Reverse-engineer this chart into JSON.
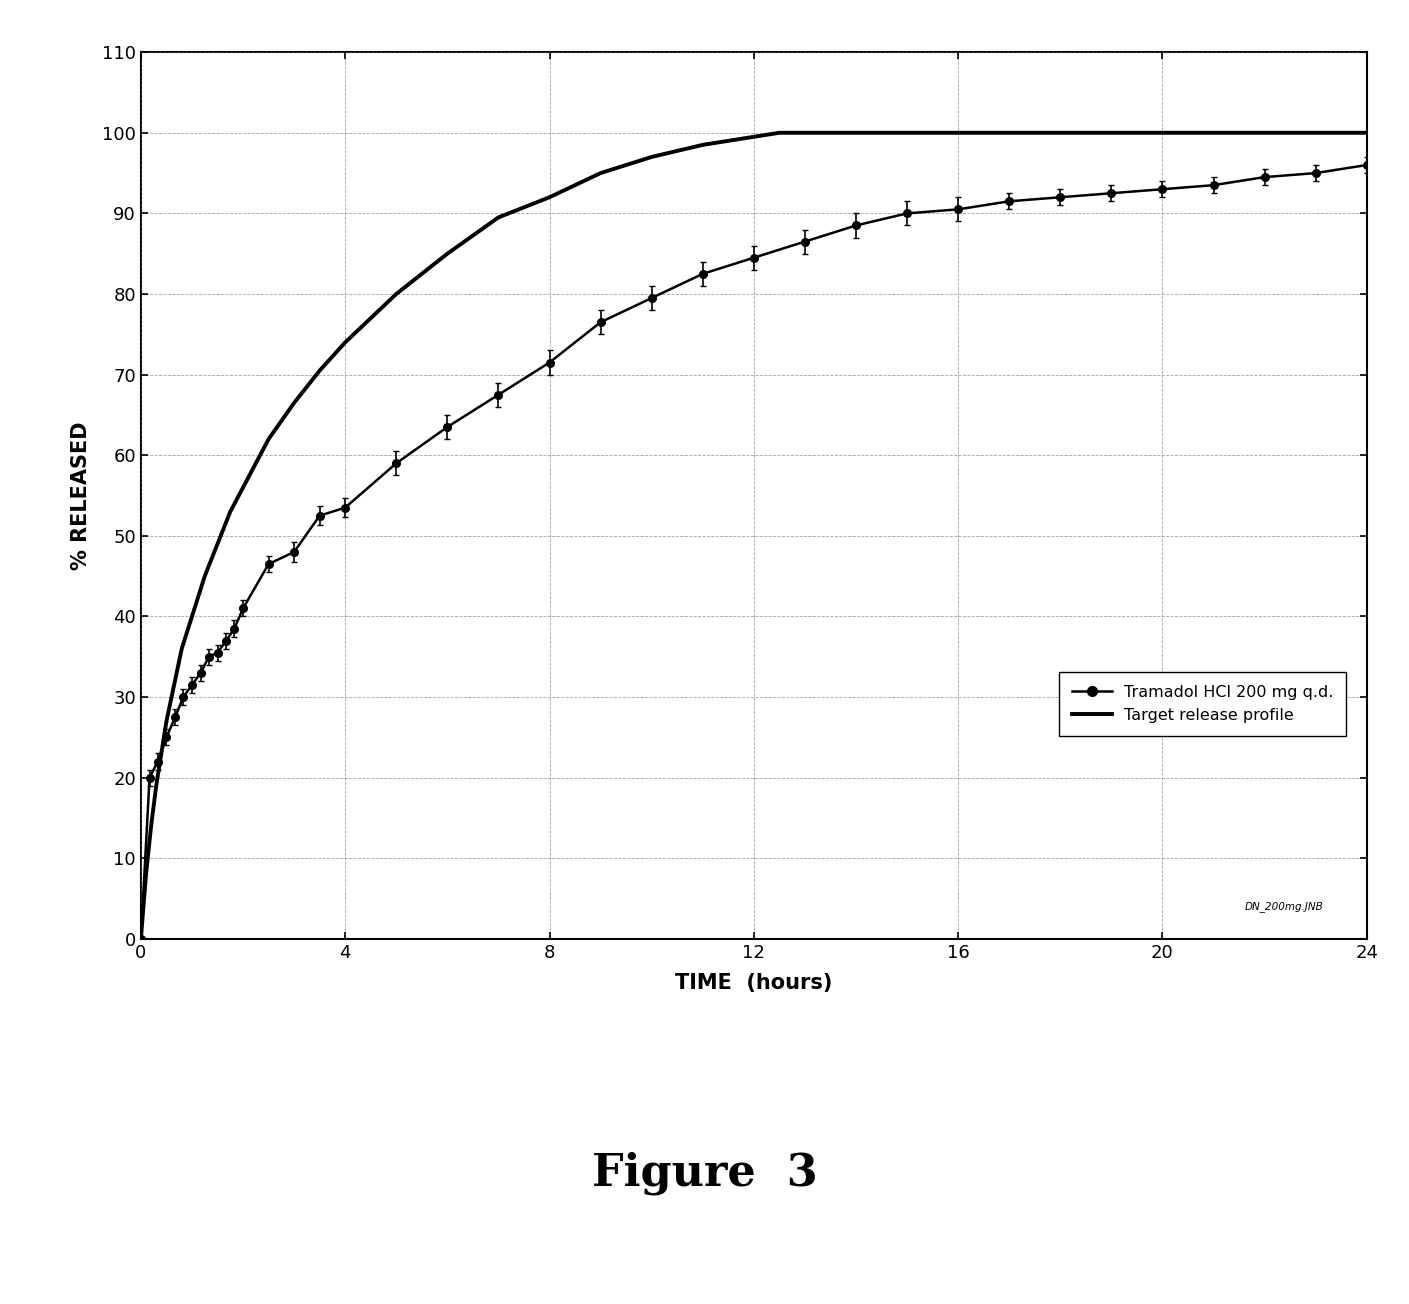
{
  "tramadol_x": [
    0,
    0.17,
    0.33,
    0.5,
    0.67,
    0.83,
    1.0,
    1.17,
    1.33,
    1.5,
    1.67,
    1.83,
    2.0,
    2.5,
    3.0,
    3.5,
    4.0,
    5.0,
    6.0,
    7.0,
    8.0,
    9.0,
    10.0,
    11.0,
    12.0,
    13.0,
    14.0,
    15.0,
    16.0,
    17.0,
    18.0,
    19.0,
    20.0,
    21.0,
    22.0,
    23.0,
    24.0
  ],
  "tramadol_y": [
    0,
    20.0,
    22.0,
    25.0,
    27.5,
    30.0,
    31.5,
    33.0,
    35.0,
    35.5,
    37.0,
    38.5,
    41.0,
    46.5,
    48.0,
    52.5,
    53.5,
    59.0,
    63.5,
    67.5,
    71.5,
    76.5,
    79.5,
    82.5,
    84.5,
    86.5,
    88.5,
    90.0,
    90.5,
    91.5,
    92.0,
    92.5,
    93.0,
    93.5,
    94.5,
    95.0,
    96.0
  ],
  "tramadol_yerr": [
    0,
    1.0,
    1.0,
    1.0,
    1.0,
    1.0,
    1.0,
    1.0,
    1.0,
    1.0,
    1.0,
    1.0,
    1.0,
    1.0,
    1.2,
    1.2,
    1.2,
    1.5,
    1.5,
    1.5,
    1.5,
    1.5,
    1.5,
    1.5,
    1.5,
    1.5,
    1.5,
    1.5,
    1.5,
    1.0,
    1.0,
    1.0,
    1.0,
    1.0,
    1.0,
    1.0,
    1.0
  ],
  "target_x": [
    0,
    0.1,
    0.2,
    0.3,
    0.4,
    0.5,
    0.6,
    0.7,
    0.8,
    0.9,
    1.0,
    1.25,
    1.5,
    1.75,
    2.0,
    2.5,
    3.0,
    3.5,
    4.0,
    5.0,
    6.0,
    7.0,
    8.0,
    9.0,
    10.0,
    11.0,
    12.0,
    12.5,
    13.0,
    13.5,
    14.0,
    14.5,
    15.0,
    15.25,
    15.5,
    16.0,
    17.0,
    18.0,
    19.0,
    20.0,
    21.0,
    22.0,
    23.0,
    24.0
  ],
  "target_y": [
    0,
    8.0,
    14.0,
    19.0,
    23.0,
    27.0,
    30.0,
    33.0,
    36.0,
    38.0,
    40.0,
    45.0,
    49.0,
    53.0,
    56.0,
    62.0,
    66.5,
    70.5,
    74.0,
    80.0,
    85.0,
    89.5,
    92.0,
    95.0,
    97.0,
    98.5,
    99.5,
    100.0,
    100.0,
    100.0,
    100.0,
    100.0,
    100.0,
    100.0,
    100.0,
    100.0,
    100.0,
    100.0,
    100.0,
    100.0,
    100.0,
    100.0,
    100.0,
    100.0
  ],
  "xlabel": "TIME  (hours)",
  "ylabel": "% RELEASED",
  "xlim": [
    0,
    24
  ],
  "ylim": [
    0,
    110
  ],
  "xticks": [
    0,
    4,
    8,
    12,
    16,
    20,
    24
  ],
  "yticks": [
    0,
    10,
    20,
    30,
    40,
    50,
    60,
    70,
    80,
    90,
    100,
    110
  ],
  "legend_tramadol": "Tramadol HCl 200 mg q.d.",
  "legend_target": "Target release profile",
  "figure_label": "Figure  3",
  "watermark": "DN_200mg.JNB",
  "bg_color": "#ffffff",
  "line_color": "#000000",
  "grid_color": "#666666"
}
